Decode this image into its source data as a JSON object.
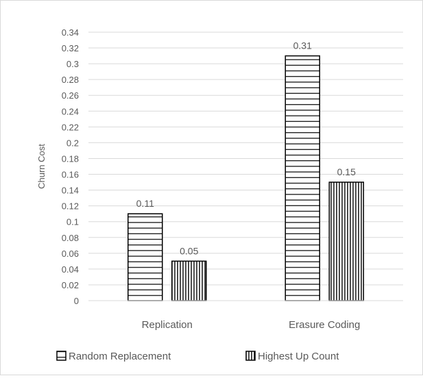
{
  "chart_data": {
    "type": "bar",
    "title": "",
    "xlabel": "",
    "ylabel": "Churn Cost",
    "categories": [
      "Replication",
      "Erasure Coding"
    ],
    "series": [
      {
        "name": "Random Replacement",
        "values": [
          0.11,
          0.31
        ],
        "value_labels": [
          "0.11",
          "0.31"
        ],
        "pattern": "horizontal-lines"
      },
      {
        "name": "Highest Up Count",
        "values": [
          0.05,
          0.15
        ],
        "value_labels": [
          "0.05",
          "0.15"
        ],
        "pattern": "vertical-lines"
      }
    ],
    "ylim": [
      0,
      0.34
    ],
    "yticks": [
      "0",
      "0.02",
      "0.04",
      "0.06",
      "0.08",
      "0.1",
      "0.12",
      "0.14",
      "0.16",
      "0.18",
      "0.2",
      "0.22",
      "0.24",
      "0.26",
      "0.28",
      "0.3",
      "0.32",
      "0.34"
    ],
    "grid": true,
    "legend_position": "bottom",
    "colors": {
      "grid": "#d9d9d9",
      "text": "#595959",
      "bar_stroke": "#000000",
      "bar_fill": "#ffffff"
    }
  }
}
